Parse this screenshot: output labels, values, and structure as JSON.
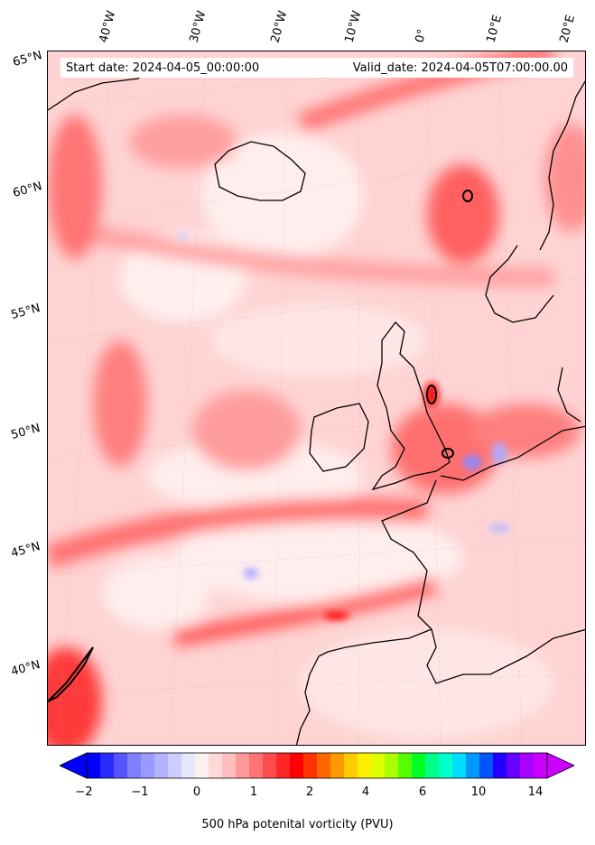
{
  "map": {
    "start_date": "Start date: 2024-04-05_00:00:00",
    "valid_date": "Valid_date: 2024-04-05T07:00:00.00",
    "lon_labels": [
      "40°W",
      "30°W",
      "20°W",
      "10°W",
      "0°",
      "10°E",
      "20°E"
    ],
    "lat_labels": [
      "65°N",
      "60°N",
      "55°N",
      "50°N",
      "45°N",
      "40°N"
    ],
    "colorbar": {
      "title": "500 hPa potenital vorticity (PVU)",
      "tick_labels": [
        "−2",
        "−1",
        "0",
        "1",
        "2",
        "4",
        "6",
        "10",
        "14"
      ],
      "colors": [
        "#0000ff",
        "#2a2aff",
        "#5555ff",
        "#7f7fff",
        "#9999ff",
        "#b3b3ff",
        "#ccccff",
        "#e6e6ff",
        "#fff0f0",
        "#ffd9d9",
        "#ffbfbf",
        "#ff9999",
        "#ff7373",
        "#ff4d4d",
        "#ff2626",
        "#ff0000",
        "#ff3300",
        "#ff6600",
        "#ff9900",
        "#ffcc00",
        "#ffee00",
        "#ddff00",
        "#aaff00",
        "#55ff00",
        "#00ff22",
        "#00ff88",
        "#00ffcc",
        "#00ddff",
        "#0099ff",
        "#0055ff",
        "#2200ff",
        "#6600ff",
        "#aa00ff",
        "#cc00ff"
      ]
    }
  }
}
